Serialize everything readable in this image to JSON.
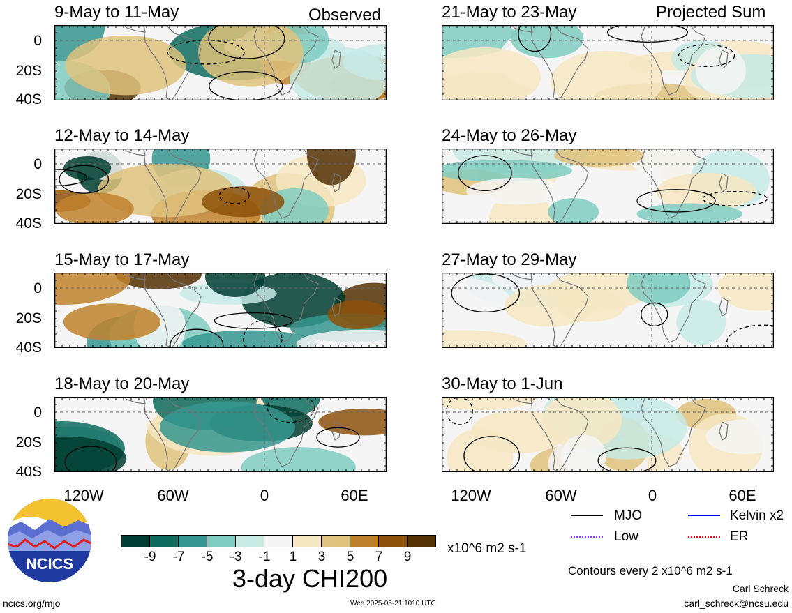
{
  "headers": {
    "left": "Observed",
    "right": "Projected Sum"
  },
  "panels": [
    {
      "title": "9-May to 11-May"
    },
    {
      "title": "12-May to 14-May"
    },
    {
      "title": "15-May to 17-May"
    },
    {
      "title": "18-May to 20-May"
    },
    {
      "title": "21-May to 23-May"
    },
    {
      "title": "24-May to 26-May"
    },
    {
      "title": "27-May to 29-May"
    },
    {
      "title": "30-May to 1-Jun"
    }
  ],
  "lat_labels": [
    "0",
    "20S",
    "40S"
  ],
  "lon_labels": [
    "120W",
    "60W",
    "0",
    "60E"
  ],
  "colorbar": {
    "title": "3-day CHI200",
    "units": "x10^6 m2 s-1",
    "tick_labels": [
      "-9",
      "-7",
      "-5",
      "-3",
      "-1",
      "1",
      "3",
      "5",
      "7",
      "9"
    ],
    "colors": [
      "#003d30",
      "#0e6b5e",
      "#35978f",
      "#80cdc1",
      "#c7eae5",
      "#f5f5f5",
      "#f6e8c3",
      "#dfc27d",
      "#bf812d",
      "#8c510a",
      "#543005"
    ]
  },
  "legend": {
    "items": [
      {
        "label": "MJO",
        "color": "#000000"
      },
      {
        "label": "Kelvin x2",
        "color": "#0000ff"
      },
      {
        "label": "Low",
        "color": "#9b30ff"
      },
      {
        "label": "ER",
        "color": "#ff0000"
      }
    ],
    "contour_note": "Contours every 2 x10^6 m2 s-1"
  },
  "logo": {
    "text": "NCICS"
  },
  "footer": {
    "left": "ncics.org/mjo",
    "center": "Wed 2025-05-21 1010 UTC",
    "author": "Carl Schreck",
    "email": "carl_schreck@ncsu.edu"
  }
}
